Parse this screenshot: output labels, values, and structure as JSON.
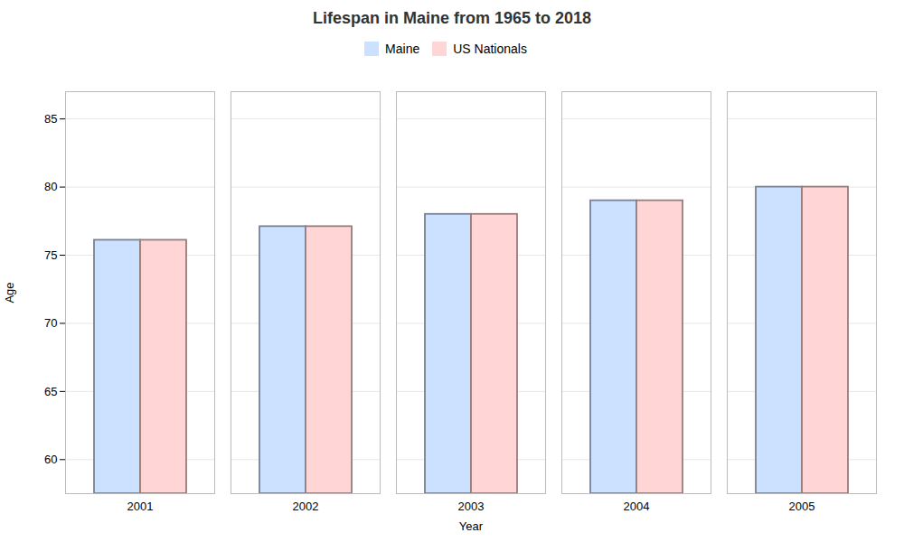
{
  "chart_data": {
    "type": "bar",
    "title": "Lifespan in Maine from 1965 to 2018",
    "xlabel": "Year",
    "ylabel": "Age",
    "categories": [
      "2001",
      "2002",
      "2003",
      "2004",
      "2005"
    ],
    "series": [
      {
        "name": "Maine",
        "color": "#cce0ff",
        "values": [
          76.1,
          77.1,
          78.0,
          79.0,
          80.0
        ]
      },
      {
        "name": "US Nationals",
        "color": "#ffd5d5",
        "values": [
          76.1,
          77.1,
          78.0,
          79.0,
          80.0
        ]
      }
    ],
    "ylim": [
      57.5,
      87
    ],
    "yticks": [
      60,
      65,
      70,
      75,
      80,
      85
    ],
    "grid": true,
    "legend": "top"
  }
}
